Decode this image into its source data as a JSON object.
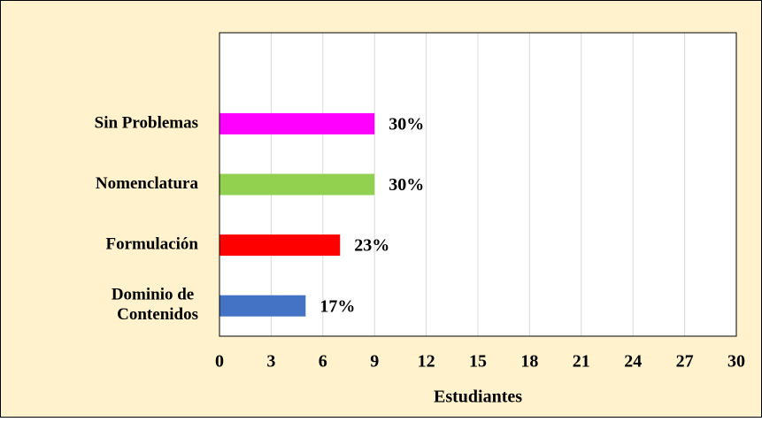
{
  "chart_data": {
    "type": "bar",
    "orientation": "horizontal",
    "categories": [
      "Dominio de Contenidos",
      "Formulación",
      "Nomenclatura",
      "Sin Problemas"
    ],
    "values": [
      5,
      7,
      9,
      9
    ],
    "value_labels": [
      "17%",
      "23%",
      "30%",
      "30%"
    ],
    "colors": [
      "#4472c4",
      "#ff0000",
      "#92d050",
      "#ff00ff"
    ],
    "xlabel": "Estudiantes",
    "xlim": [
      0,
      30
    ],
    "xticks": [
      0,
      3,
      6,
      9,
      12,
      15,
      18,
      21,
      24,
      27,
      30
    ],
    "grid": true
  }
}
